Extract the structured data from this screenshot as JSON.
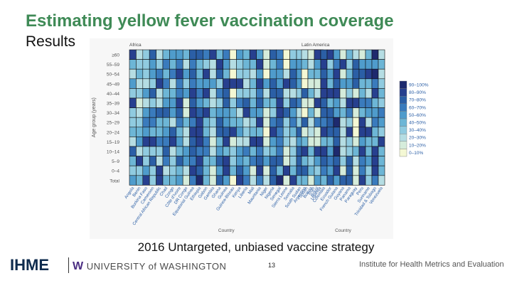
{
  "slide": {
    "title": "Estimating yellow fever vaccination coverage",
    "subtitle": "Results",
    "caption": "2016 Untargeted, unbiased vaccine strategy",
    "page_number": "13"
  },
  "footer": {
    "org_logo": "IHME",
    "university": "UNIVERSITY of WASHINGTON",
    "university_mark": "W",
    "institute": "Institute for Health Metrics and Evaluation"
  },
  "chart_data": {
    "type": "heatmap",
    "ylabel": "Age group (years)",
    "age_groups": [
      "≥60",
      "55–59",
      "50–54",
      "45–49",
      "40–44",
      "35–39",
      "30–34",
      "25–29",
      "20–24",
      "15–19",
      "10–14",
      "5–9",
      "0–4",
      "Total"
    ],
    "panels": [
      {
        "name": "Africa",
        "xlabel": "Country",
        "countries": [
          "Angola",
          "Benin",
          "Burkina Faso",
          "Cameroon",
          "Central African Republic",
          "Chad",
          "Congo",
          "Côte d'Ivoire",
          "DR Congo",
          "Equatorial Guinea",
          "Ethiopia",
          "Gabon",
          "Gambia",
          "Ghana",
          "Guinea",
          "Guinea-Bissau",
          "Kenya",
          "Liberia",
          "Mali",
          "Mauritania",
          "Niger",
          "Nigeria",
          "Senegal",
          "Sierra Leone",
          "Somalia",
          "South Sudan",
          "Sudan",
          "Togo",
          "Uganda"
        ]
      },
      {
        "name": "Latin America",
        "xlabel": "Country",
        "countries": [
          "Argentina",
          "Bolivia",
          "Brazil",
          "Colombia",
          "Ecuador",
          "French Guiana",
          "Guyana",
          "Panama",
          "Paraguay",
          "Peru",
          "Suriname",
          "Trinidad & Tobago",
          "Venezuela"
        ]
      }
    ],
    "legend": {
      "colors": [
        "#1e2a6e",
        "#27408f",
        "#2b5fa6",
        "#3a7bbd",
        "#4f9ccc",
        "#6db6d6",
        "#90cbe0",
        "#b5dde3",
        "#d5ecdb",
        "#f4f8d4"
      ],
      "labels": [
        "90–100%",
        "80–90%",
        "70–80%",
        "60–70%",
        "50–60%",
        "40–50%",
        "30–40%",
        "20–30%",
        "10–20%",
        "0–10%"
      ]
    }
  }
}
